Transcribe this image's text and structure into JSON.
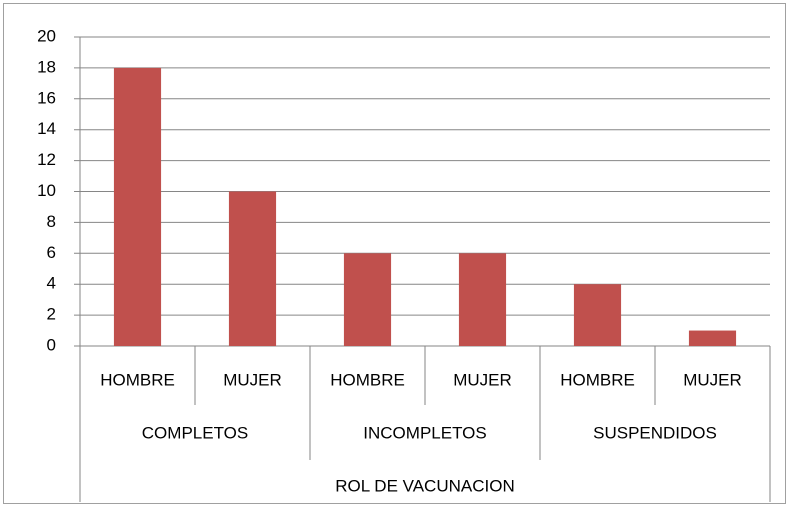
{
  "chart_data": {
    "type": "bar",
    "categories": [
      "HOMBRE",
      "MUJER",
      "HOMBRE",
      "MUJER",
      "HOMBRE",
      "MUJER"
    ],
    "category_groups": [
      "COMPLETOS",
      "INCOMPLETOS",
      "SUSPENDIDOS"
    ],
    "x_label": "ROL DE VACUNACION",
    "values": [
      18,
      10,
      6,
      6,
      4,
      1
    ],
    "color": "#c0504d",
    "ylim": [
      0,
      20
    ],
    "yticks": [
      0,
      2,
      4,
      6,
      8,
      10,
      12,
      14,
      16,
      18,
      20
    ],
    "grid": true
  }
}
